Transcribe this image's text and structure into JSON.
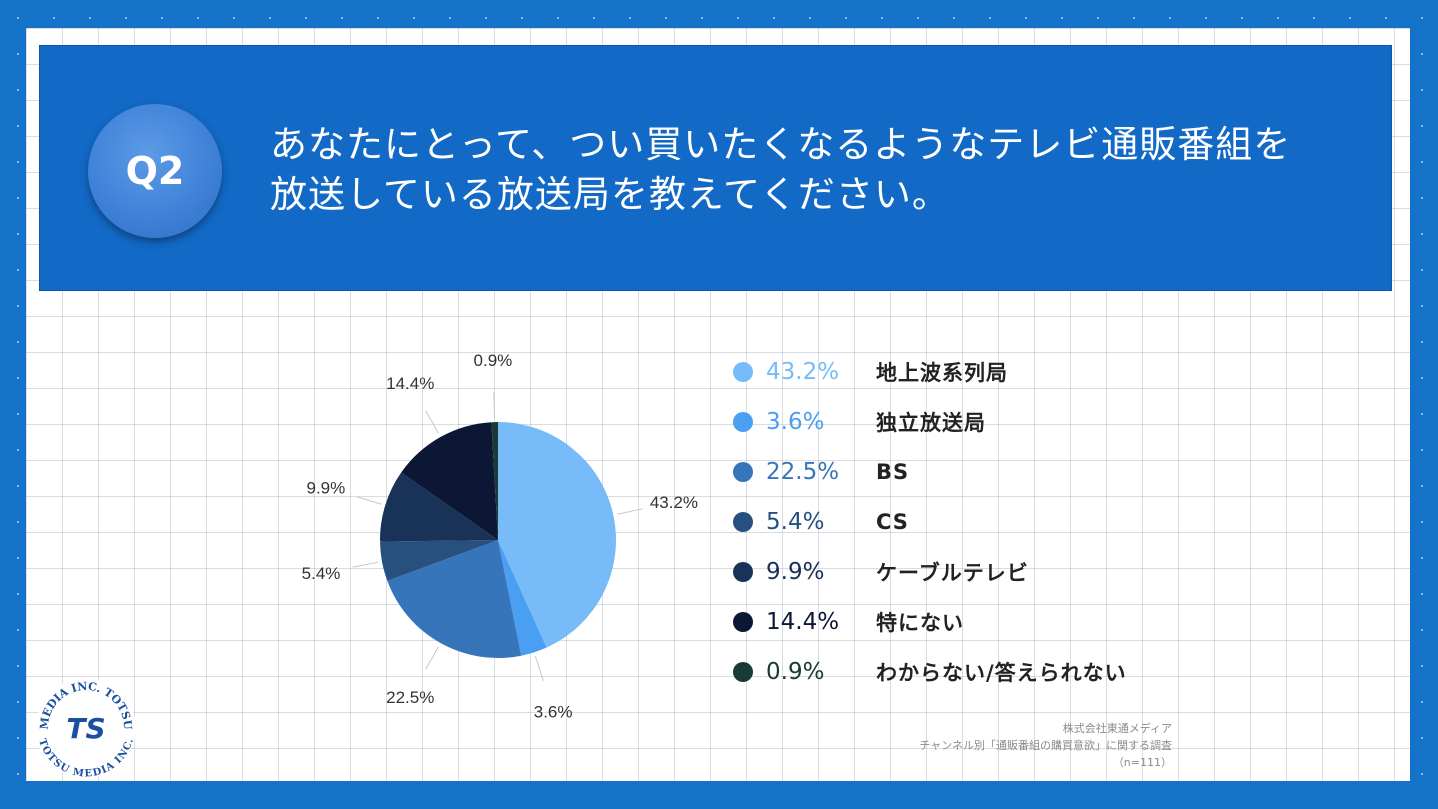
{
  "question": {
    "badge": "Q2",
    "line1": "あなたにとって、つい買いたくなるようなテレビ通販番組を",
    "line2": "放送している放送局を教えてください。"
  },
  "chart_data": {
    "type": "pie",
    "title": "あなたにとって、つい買いたくなるようなテレビ通販番組を放送している放送局を教えてください。",
    "slices": [
      {
        "label": "地上波系列局",
        "value": 43.2,
        "display": "43.2%",
        "color": "#77bbf9"
      },
      {
        "label": "独立放送局",
        "value": 3.6,
        "display": "3.6%",
        "color": "#4b9ff2"
      },
      {
        "label": "BS",
        "value": 22.5,
        "display": "22.5%",
        "color": "#3775bb"
      },
      {
        "label": "CS",
        "value": 5.4,
        "display": "5.4%",
        "color": "#27507f"
      },
      {
        "label": "ケーブルテレビ",
        "value": 9.9,
        "display": "9.9%",
        "color": "#193258"
      },
      {
        "label": "特にない",
        "value": 14.4,
        "display": "14.4%",
        "color": "#0b1735"
      },
      {
        "label": "わからない/答えられない",
        "value": 0.9,
        "display": "0.9%",
        "color": "#1a3a35"
      }
    ],
    "legend_position": "right"
  },
  "source": {
    "line1": "株式会社東通メディア",
    "line2": "チャンネル別「通販番組の購買意欲」に関する調査",
    "line3": "（n=111）"
  },
  "logo": {
    "top_text": "MEDIA INC. TOTSU",
    "bottom_text": "TOTSU MEDIA INC.",
    "mark": "TS"
  }
}
